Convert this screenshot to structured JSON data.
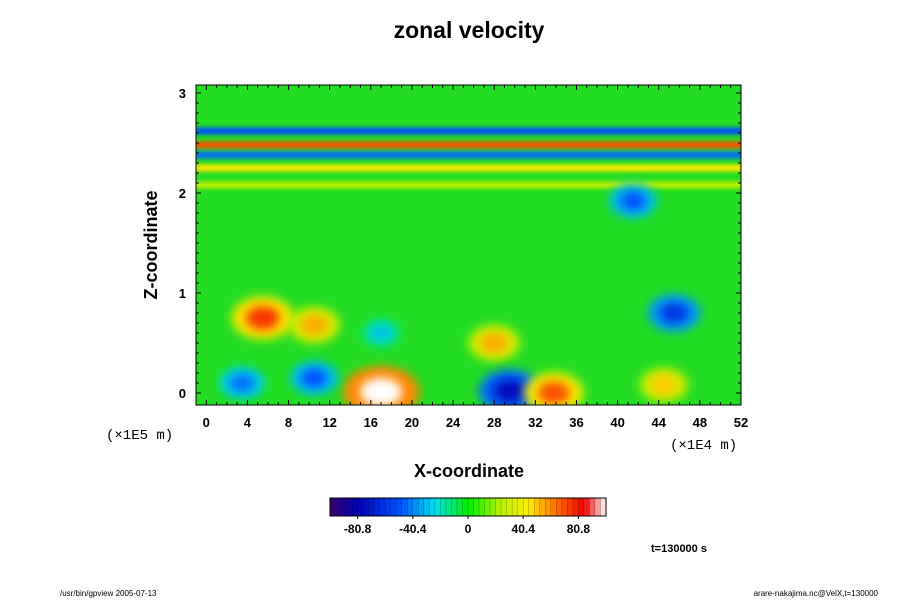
{
  "chart_data": {
    "type": "heatmap",
    "title": "zonal velocity",
    "xlabel": "X-coordinate",
    "ylabel": "Z-coordinate",
    "x_scale_note": "(×1E4 m)",
    "y_scale_note": "(×1E5 m)",
    "xlim": [
      -1,
      52
    ],
    "ylim": [
      -0.12,
      3.08
    ],
    "x_ticks": [
      0,
      4,
      8,
      12,
      16,
      20,
      24,
      28,
      32,
      36,
      40,
      44,
      48,
      52
    ],
    "y_ticks": [
      0,
      1,
      2,
      3
    ],
    "colorbar": {
      "range": [
        -101,
        101
      ],
      "ticks": [
        -80.8,
        -40.4,
        0,
        40.4,
        80.8
      ],
      "tick_labels": [
        "-80.8",
        "-40.4",
        "0",
        "40.4",
        "80.8"
      ]
    },
    "time_label": "t=130000 s",
    "features": [
      {
        "kind": "band",
        "z": 2.62,
        "x_from": 0,
        "x_to": 52,
        "value": -50
      },
      {
        "kind": "band",
        "z": 2.48,
        "x_from": 0,
        "x_to": 52,
        "value": 70
      },
      {
        "kind": "band",
        "z": 2.38,
        "x_from": 0,
        "x_to": 52,
        "value": -45
      },
      {
        "kind": "band",
        "z": 2.25,
        "x_from": 0,
        "x_to": 52,
        "value": 45
      },
      {
        "kind": "band",
        "z": 2.08,
        "x_from": 0,
        "x_to": 52,
        "value": 25
      },
      {
        "kind": "blob",
        "x": 5.5,
        "z": 0.75,
        "value": 75
      },
      {
        "kind": "blob",
        "x": 10.5,
        "z": 0.68,
        "value": 55
      },
      {
        "kind": "blob",
        "x": 17,
        "z": 0.6,
        "value": -30
      },
      {
        "kind": "blob",
        "x": 28,
        "z": 0.5,
        "value": 55
      },
      {
        "kind": "blob",
        "x": 45.5,
        "z": 0.8,
        "value": -60
      },
      {
        "kind": "blob",
        "x": 41.5,
        "z": 1.92,
        "value": -50
      },
      {
        "kind": "blob",
        "x": 17,
        "z": 0.01,
        "value": 101
      },
      {
        "kind": "blob",
        "x": 29.5,
        "z": 0.02,
        "value": -75
      },
      {
        "kind": "blob",
        "x": 33.8,
        "z": 0.0,
        "value": 70
      },
      {
        "kind": "blob",
        "x": 44.5,
        "z": 0.08,
        "value": 50
      },
      {
        "kind": "blob",
        "x": 3.5,
        "z": 0.1,
        "value": -45
      },
      {
        "kind": "blob",
        "x": 10.5,
        "z": 0.15,
        "value": -50
      }
    ]
  },
  "footer": {
    "left": "/usr/bin/gpview 2005-07-13",
    "right": "arare-nakajima.nc@VelX,t=130000"
  }
}
